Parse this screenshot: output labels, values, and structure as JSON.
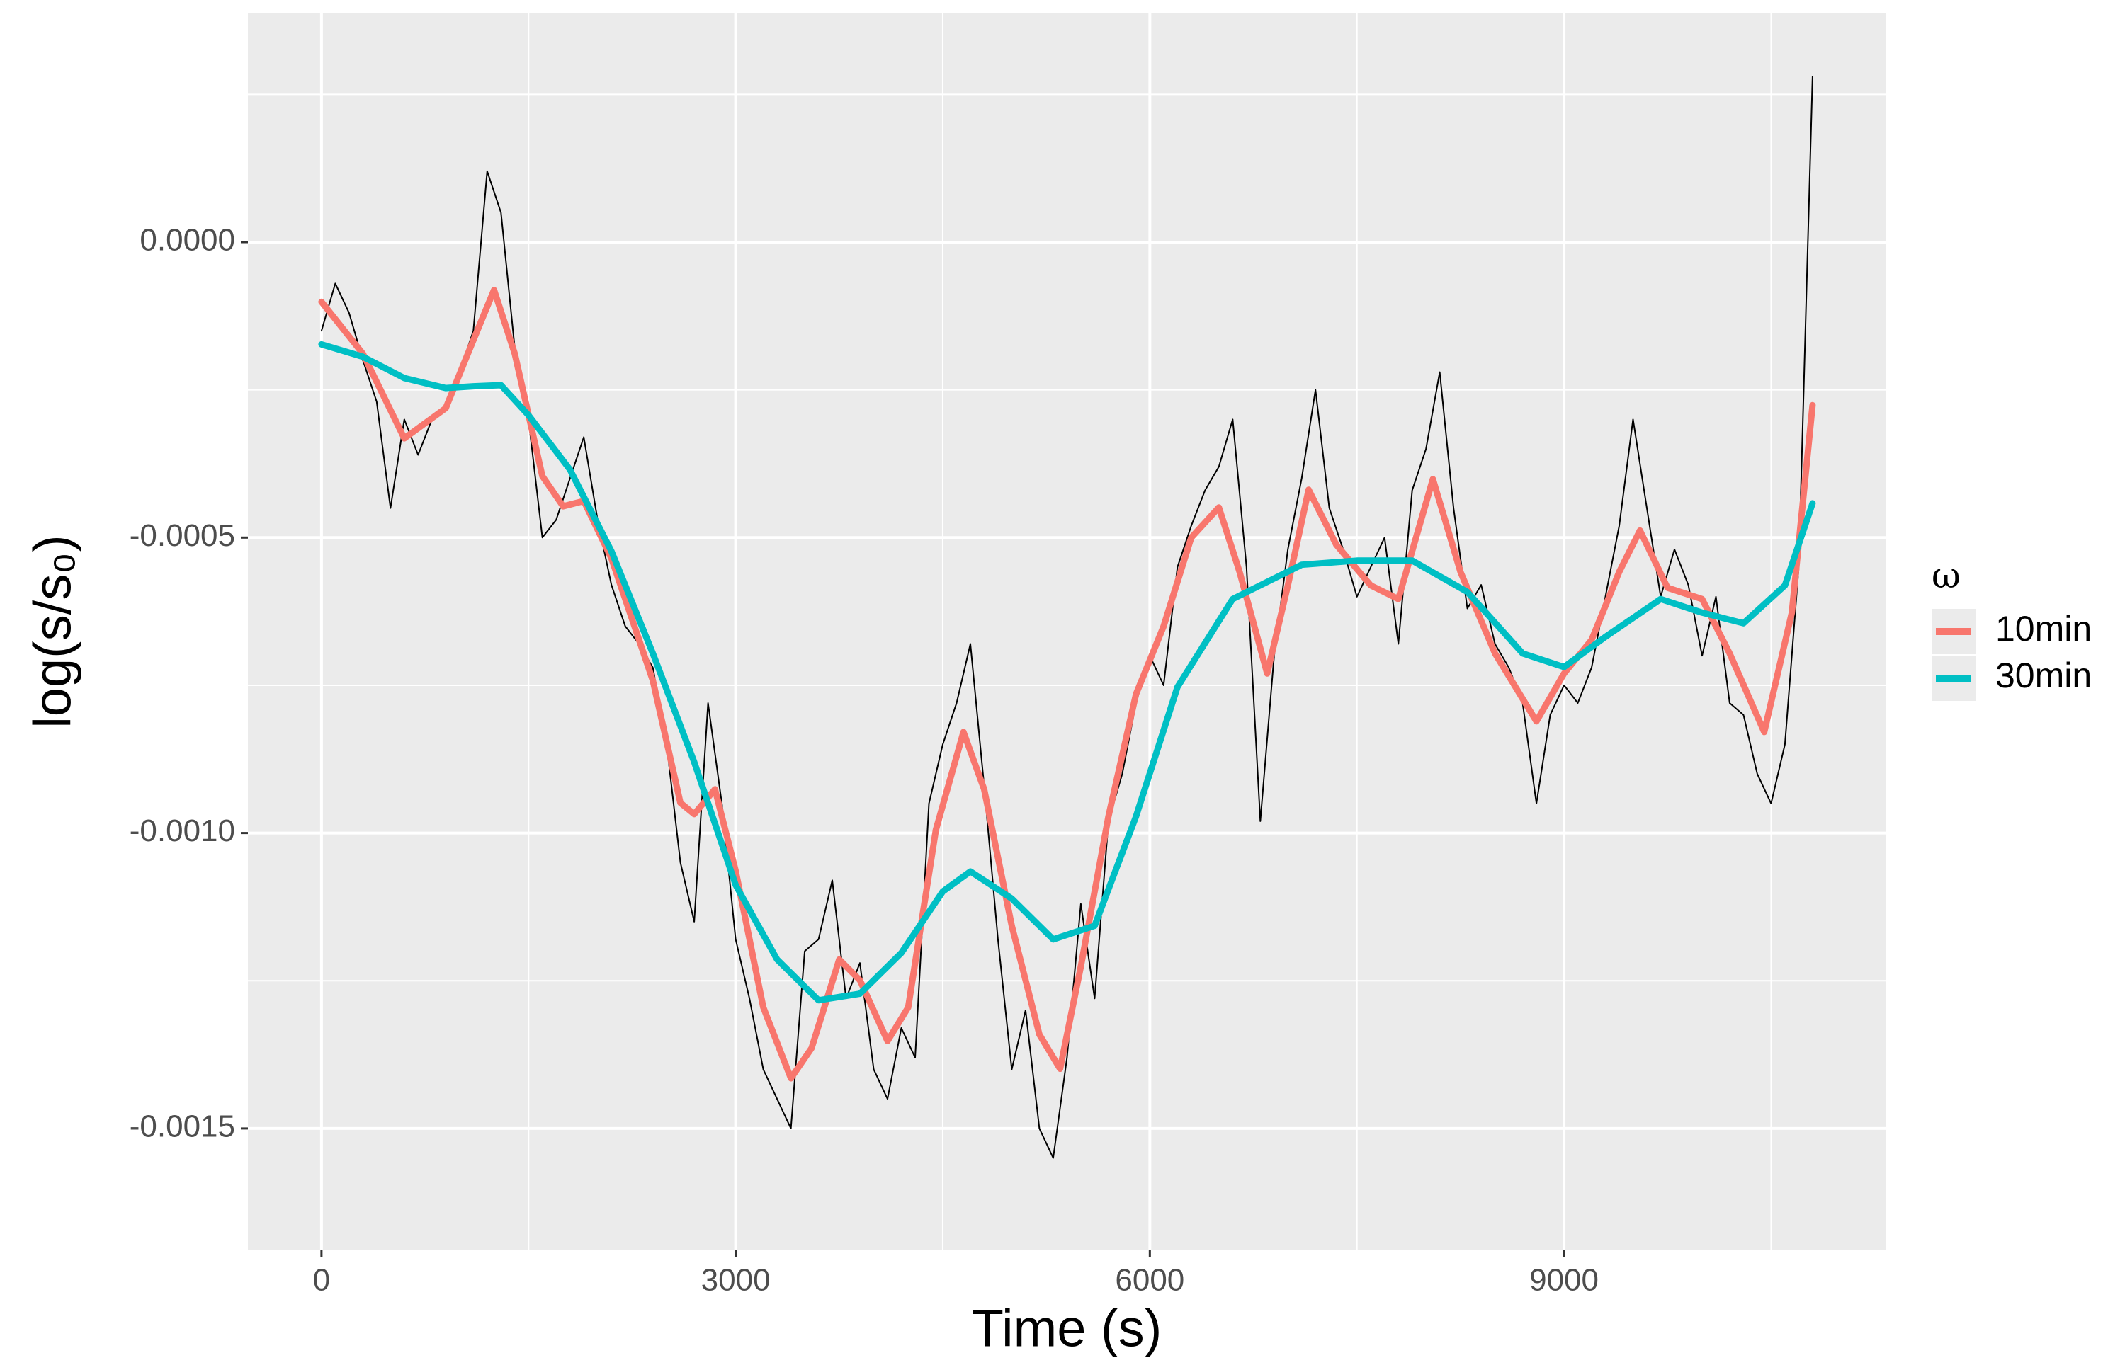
{
  "chart_data": {
    "type": "line",
    "x_label": "Time (s)",
    "y_label": "log(s/s₀)",
    "legend_title": "ω",
    "legend_position": "right",
    "grid": true,
    "panel_color": "#ebebeb",
    "xlim": [
      -533,
      11329
    ],
    "ylim": [
      -0.001705,
      0.000387
    ],
    "xticks": [
      0,
      3000,
      6000,
      9000
    ],
    "x_minor_ticks": [
      1500,
      4500,
      7500,
      10500
    ],
    "yticks": [
      {
        "value": 0,
        "label": "0.0000"
      },
      {
        "value": -0.0005,
        "label": "-0.0005"
      },
      {
        "value": -0.001,
        "label": "-0.0010"
      },
      {
        "value": -0.0015,
        "label": "-0.0015"
      }
    ],
    "y_minor_ticks": [
      0.00025,
      -0.00025,
      -0.00075,
      -0.00125
    ],
    "raw": {
      "color": "#000000",
      "x": [
        0,
        100,
        200,
        300,
        400,
        500,
        600,
        700,
        800,
        900,
        1000,
        1100,
        1200,
        1300,
        1400,
        1500,
        1600,
        1700,
        1800,
        1900,
        2000,
        2100,
        2200,
        2300,
        2400,
        2500,
        2600,
        2700,
        2800,
        2900,
        3000,
        3100,
        3200,
        3300,
        3400,
        3500,
        3600,
        3700,
        3800,
        3900,
        4000,
        4100,
        4200,
        4300,
        4400,
        4500,
        4600,
        4700,
        4800,
        4900,
        5000,
        5100,
        5200,
        5300,
        5400,
        5500,
        5600,
        5700,
        5800,
        5900,
        6000,
        6100,
        6200,
        6300,
        6400,
        6500,
        6600,
        6700,
        6800,
        6900,
        7000,
        7100,
        7200,
        7300,
        7400,
        7500,
        7600,
        7700,
        7800,
        7900,
        8000,
        8100,
        8200,
        8300,
        8400,
        8500,
        8600,
        8700,
        8800,
        8900,
        9000,
        9100,
        9200,
        9300,
        9400,
        9500,
        9600,
        9700,
        9800,
        9900,
        10000,
        10100,
        10200,
        10300,
        10400,
        10500,
        10600,
        10700,
        10800
      ],
      "values": [
        -0.00015,
        -7e-05,
        -0.00012,
        -0.0002,
        -0.00027,
        -0.00045,
        -0.0003,
        -0.00036,
        -0.0003,
        -0.00028,
        -0.00022,
        -0.00015,
        0.00012,
        5e-05,
        -0.00018,
        -0.0003,
        -0.0005,
        -0.00047,
        -0.0004,
        -0.00033,
        -0.00047,
        -0.00058,
        -0.00065,
        -0.00068,
        -0.00072,
        -0.00085,
        -0.00105,
        -0.00115,
        -0.00078,
        -0.00095,
        -0.00118,
        -0.00128,
        -0.0014,
        -0.00145,
        -0.0015,
        -0.0012,
        -0.00118,
        -0.00108,
        -0.00128,
        -0.00122,
        -0.0014,
        -0.00145,
        -0.00133,
        -0.00138,
        -0.00095,
        -0.00085,
        -0.00078,
        -0.00068,
        -0.00092,
        -0.00118,
        -0.0014,
        -0.0013,
        -0.0015,
        -0.00155,
        -0.00138,
        -0.00112,
        -0.00128,
        -0.00098,
        -0.0009,
        -0.00078,
        -0.0007,
        -0.00075,
        -0.00055,
        -0.00048,
        -0.00042,
        -0.00038,
        -0.0003,
        -0.00055,
        -0.00098,
        -0.0007,
        -0.00052,
        -0.0004,
        -0.00025,
        -0.00045,
        -0.00052,
        -0.0006,
        -0.00055,
        -0.0005,
        -0.00068,
        -0.00042,
        -0.00035,
        -0.00022,
        -0.00045,
        -0.00062,
        -0.00058,
        -0.00068,
        -0.00072,
        -0.00078,
        -0.00095,
        -0.0008,
        -0.00075,
        -0.00078,
        -0.00072,
        -0.0006,
        -0.00048,
        -0.0003,
        -0.00045,
        -0.0006,
        -0.00052,
        -0.00058,
        -0.0007,
        -0.0006,
        -0.00078,
        -0.0008,
        -0.0009,
        -0.00095,
        -0.00085,
        -0.00055,
        0.00028
      ]
    },
    "series": [
      {
        "name": "10min",
        "color": "#f8766d",
        "x": [
          0,
          300,
          600,
          900,
          1100,
          1250,
          1400,
          1600,
          1750,
          1900,
          2100,
          2400,
          2600,
          2700,
          2850,
          3000,
          3200,
          3400,
          3550,
          3750,
          3900,
          4100,
          4250,
          4450,
          4650,
          4800,
          5000,
          5200,
          5350,
          5500,
          5700,
          5900,
          6100,
          6300,
          6500,
          6650,
          6850,
          7000,
          7150,
          7350,
          7600,
          7800,
          8050,
          8250,
          8500,
          8800,
          9000,
          9200,
          9400,
          9550,
          9750,
          10000,
          10200,
          10450,
          10650,
          10800
        ],
        "values": [
          -0.000101,
          -0.000189,
          -0.000332,
          -0.000281,
          -0.000166,
          -8.1e-05,
          -0.000189,
          -0.000396,
          -0.000447,
          -0.000438,
          -0.000535,
          -0.000742,
          -0.000949,
          -0.000968,
          -0.000926,
          -0.001064,
          -0.001295,
          -0.001415,
          -0.001364,
          -0.001214,
          -0.001249,
          -0.001352,
          -0.001295,
          -0.000995,
          -0.000829,
          -0.000926,
          -0.001157,
          -0.001341,
          -0.001399,
          -0.001226,
          -0.000972,
          -0.000765,
          -0.00065,
          -0.0005,
          -0.000449,
          -0.000558,
          -0.00073,
          -0.000581,
          -0.000419,
          -0.000512,
          -0.000581,
          -0.000604,
          -0.000401,
          -0.000558,
          -0.000696,
          -0.000811,
          -0.00073,
          -0.000673,
          -0.000558,
          -0.000488,
          -0.000585,
          -0.000604,
          -0.000696,
          -0.000829,
          -0.000627,
          -0.000276
        ]
      },
      {
        "name": "30min",
        "color": "#00bfc4",
        "x": [
          0,
          300,
          600,
          900,
          1100,
          1300,
          1500,
          1800,
          2100,
          2400,
          2700,
          3000,
          3300,
          3600,
          3900,
          4200,
          4500,
          4700,
          5000,
          5300,
          5600,
          5900,
          6200,
          6600,
          7100,
          7500,
          7900,
          8300,
          8700,
          9000,
          9300,
          9700,
          10000,
          10300,
          10600,
          10800
        ],
        "values": [
          -0.000173,
          -0.000194,
          -0.00023,
          -0.000247,
          -0.000244,
          -0.000242,
          -0.000293,
          -0.000385,
          -0.000523,
          -0.000696,
          -0.00088,
          -0.001088,
          -0.001214,
          -0.001283,
          -0.001272,
          -0.001203,
          -0.001099,
          -0.001065,
          -0.001111,
          -0.00118,
          -0.001157,
          -0.000972,
          -0.000753,
          -0.000604,
          -0.000546,
          -0.000539,
          -0.000539,
          -0.000592,
          -0.000696,
          -0.000719,
          -0.000668,
          -0.000604,
          -0.000627,
          -0.000645,
          -0.000581,
          -0.000442
        ]
      }
    ]
  }
}
